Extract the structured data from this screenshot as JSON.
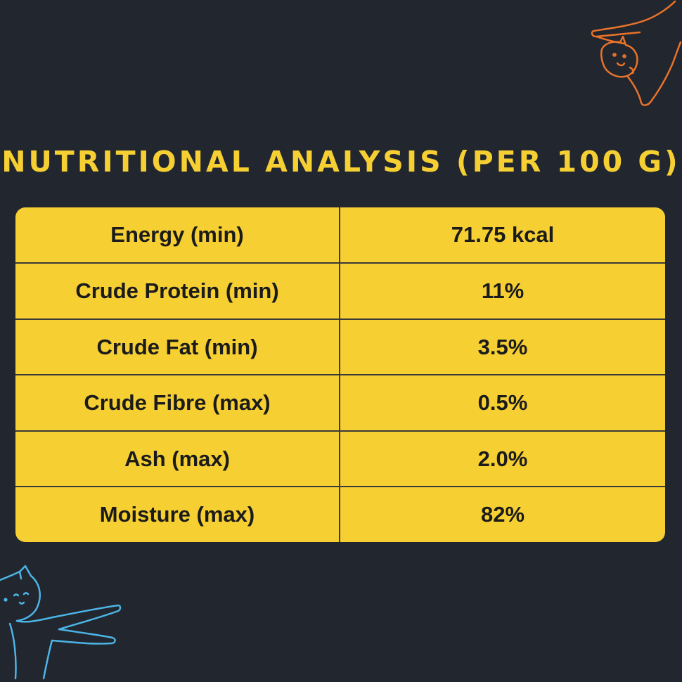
{
  "title": "NUTRITIONAL ANALYSIS (PER 100 G)",
  "rows": [
    {
      "label": "Energy (min)",
      "value": "71.75 kcal"
    },
    {
      "label": "Crude Protein (min)",
      "value": "11%"
    },
    {
      "label": "Crude Fat (min)",
      "value": "3.5%"
    },
    {
      "label": "Crude Fibre (max)",
      "value": "0.5%"
    },
    {
      "label": "Ash (max)",
      "value": "2.0%"
    },
    {
      "label": "Moisture (max)",
      "value": "82%"
    }
  ],
  "colors": {
    "background": "#22262e",
    "accent": "#f6cf33",
    "cat_top": "#e8732a",
    "cat_bottom": "#4cb4e6"
  },
  "icons": [
    "orange-cat-doodle-icon",
    "blue-cat-doodle-icon"
  ]
}
